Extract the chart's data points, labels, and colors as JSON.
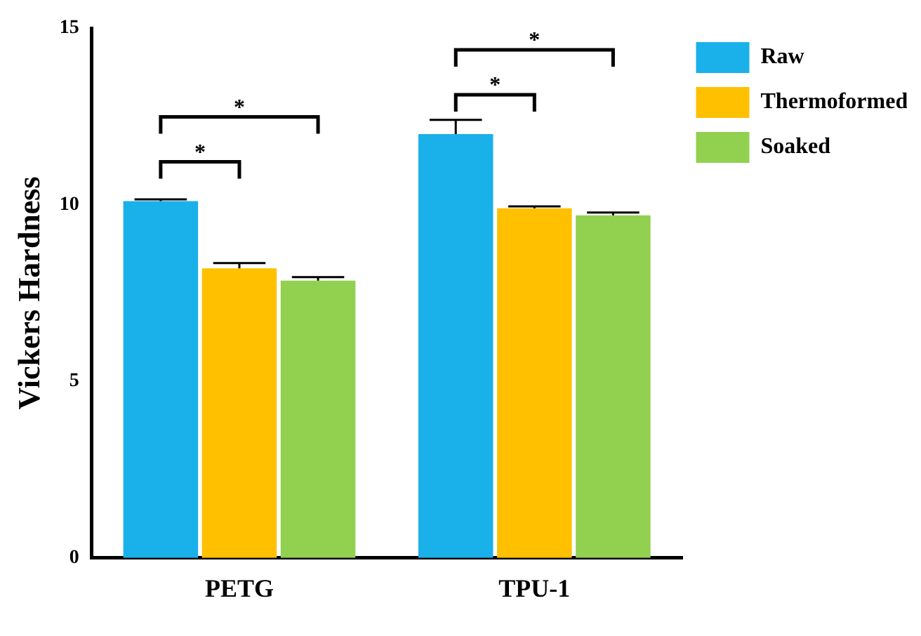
{
  "chart_data": {
    "type": "bar",
    "ylabel": "Vickers Hardness",
    "categories": [
      "PETG",
      "TPU-1"
    ],
    "series": [
      {
        "name": "Raw",
        "color": "#1ab0ea",
        "values": [
          10.1,
          12.0
        ],
        "errors": [
          [
            10.1,
            10.15
          ],
          [
            12.0,
            12.4
          ]
        ]
      },
      {
        "name": "Thermoformed",
        "color": "#ffc000",
        "values": [
          8.2,
          9.9
        ],
        "errors": [
          [
            8.2,
            8.35
          ],
          [
            9.9,
            9.95
          ]
        ]
      },
      {
        "name": "Soaked",
        "color": "#92d050",
        "values": [
          7.85,
          9.7
        ],
        "errors": [
          [
            7.85,
            7.95
          ],
          [
            9.7,
            9.78
          ]
        ]
      }
    ],
    "ylim": [
      0,
      15
    ],
    "yticks": [
      0,
      5,
      10,
      15
    ],
    "grid": false,
    "legend": "top right",
    "annotations": [
      "*",
      "*",
      "*",
      "*"
    ]
  }
}
